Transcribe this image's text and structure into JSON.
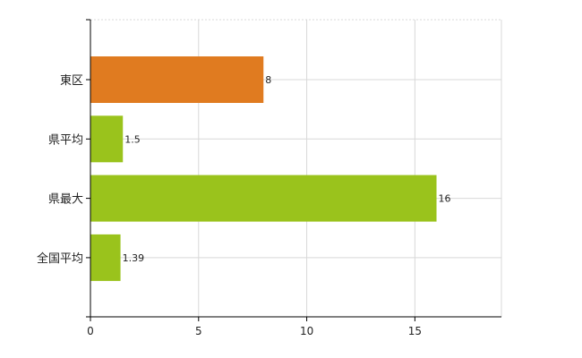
{
  "chart_data": {
    "type": "bar",
    "orientation": "horizontal",
    "categories": [
      "東区",
      "県平均",
      "県最大",
      "全国平均"
    ],
    "values": [
      8,
      1.5,
      16,
      1.39
    ],
    "data_labels": [
      "8",
      "1.5",
      "16",
      "1.39"
    ],
    "bar_colors": [
      "#e07b20",
      "#9ac31c",
      "#9ac31c",
      "#9ac31c"
    ],
    "xlim": [
      0,
      19
    ],
    "xticks": [
      0,
      5,
      10,
      15
    ],
    "xtick_labels": [
      "0",
      "5",
      "10",
      "15"
    ],
    "grid": true,
    "legend": "none"
  }
}
